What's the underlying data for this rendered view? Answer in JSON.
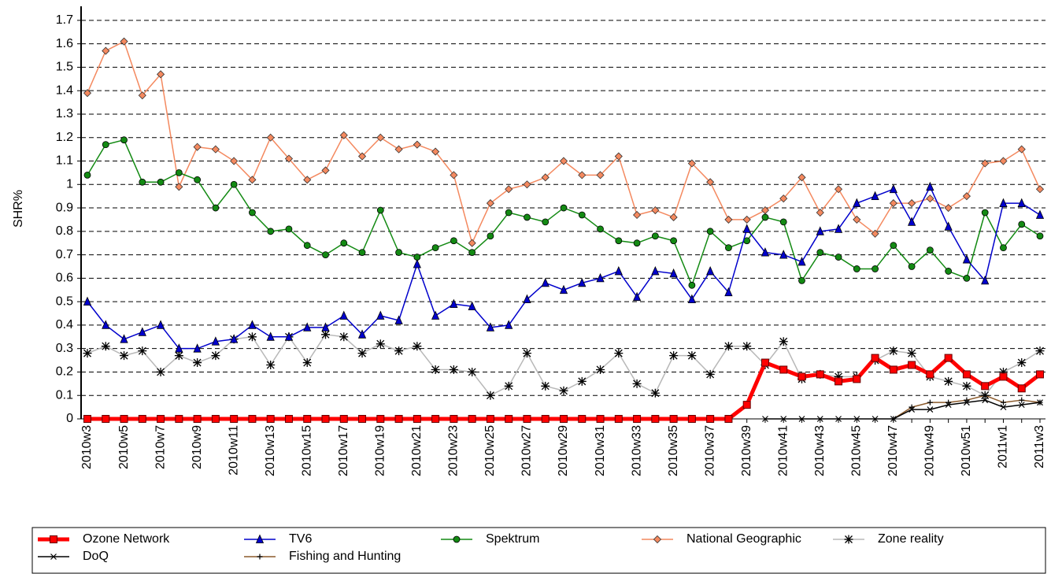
{
  "chart_data": {
    "type": "line",
    "y_label": "SHR%",
    "categories": [
      "2010w3",
      null,
      "2010w5",
      null,
      "2010w7",
      null,
      "2010w9",
      null,
      "2010w11",
      null,
      "2010w13",
      null,
      "2010w15",
      null,
      "2010w17",
      null,
      "2010w19",
      null,
      "2010w21",
      null,
      "2010w23",
      null,
      "2010w25",
      null,
      "2010w27",
      null,
      "2010w29",
      null,
      "2010w31",
      null,
      "2010w33",
      null,
      "2010w35",
      null,
      "2010w37",
      null,
      "2010w39",
      null,
      "2010w41",
      null,
      "2010w43",
      null,
      "2010w45",
      null,
      "2010w47",
      null,
      "2010w49",
      null,
      "2010w51",
      null,
      "2011w1",
      null,
      "2011w3"
    ],
    "ylim": [
      0,
      1.76
    ],
    "yticks": [
      0,
      0.1,
      0.2,
      0.3,
      0.4,
      0.5,
      0.6,
      0.7,
      0.8,
      0.9,
      1,
      1.1,
      1.2,
      1.3,
      1.4,
      1.5,
      1.6,
      1.7
    ],
    "grid": true,
    "legend": "bottom",
    "series": [
      {
        "name": "Ozone Network",
        "color": "#ff0000",
        "marker": "square",
        "values": [
          0,
          0,
          0,
          0,
          0,
          0,
          0,
          0,
          0,
          0,
          0,
          0,
          0,
          0,
          0,
          0,
          0,
          0,
          0,
          0,
          0,
          0,
          0,
          0,
          0,
          0,
          0,
          0,
          0,
          0,
          0,
          0,
          0,
          0,
          0,
          0,
          0.06,
          0.24,
          0.21,
          0.18,
          0.19,
          0.16,
          0.17,
          0.26,
          0.21,
          0.23,
          0.19,
          0.26,
          0.19,
          0.14,
          0.18,
          0.13,
          0.19
        ]
      },
      {
        "name": "TV6",
        "color": "#0000cc",
        "marker": "triangle",
        "values": [
          0.5,
          0.4,
          0.34,
          0.37,
          0.4,
          0.3,
          0.3,
          0.33,
          0.34,
          0.4,
          0.35,
          0.35,
          0.39,
          0.39,
          0.44,
          0.36,
          0.44,
          0.42,
          0.66,
          0.44,
          0.49,
          0.48,
          0.39,
          0.4,
          0.51,
          0.58,
          0.55,
          0.58,
          0.6,
          0.63,
          0.52,
          0.63,
          0.62,
          0.51,
          0.63,
          0.54,
          0.81,
          0.71,
          0.7,
          0.67,
          0.8,
          0.81,
          0.92,
          0.95,
          0.98,
          0.84,
          0.99,
          0.82,
          0.68,
          0.59,
          0.92,
          0.92,
          0.87
        ]
      },
      {
        "name": "Spektrum",
        "color": "#138a13",
        "marker": "circle",
        "values": [
          1.04,
          1.17,
          1.19,
          1.01,
          1.01,
          1.05,
          1.02,
          0.9,
          1.0,
          0.88,
          0.8,
          0.81,
          0.74,
          0.7,
          0.75,
          0.71,
          0.89,
          0.71,
          0.69,
          0.73,
          0.76,
          0.71,
          0.78,
          0.88,
          0.86,
          0.84,
          0.9,
          0.87,
          0.81,
          0.76,
          0.75,
          0.78,
          0.76,
          0.57,
          0.8,
          0.73,
          0.76,
          0.86,
          0.84,
          0.59,
          0.71,
          0.69,
          0.64,
          0.64,
          0.74,
          0.65,
          0.72,
          0.63,
          0.6,
          0.88,
          0.73,
          0.83,
          0.78
        ]
      },
      {
        "name": "National Geographic",
        "color": "#f4895f",
        "marker": "diamond",
        "values": [
          1.39,
          1.57,
          1.61,
          1.38,
          1.47,
          0.99,
          1.16,
          1.15,
          1.1,
          1.02,
          1.2,
          1.11,
          1.02,
          1.06,
          1.21,
          1.12,
          1.2,
          1.15,
          1.17,
          1.14,
          1.04,
          0.75,
          0.92,
          0.98,
          1.0,
          1.03,
          1.1,
          1.04,
          1.04,
          1.12,
          0.87,
          0.89,
          0.86,
          1.09,
          1.01,
          0.85,
          0.85,
          0.89,
          0.94,
          1.03,
          0.88,
          0.98,
          0.85,
          0.79,
          0.92,
          0.92,
          0.94,
          0.9,
          0.95,
          1.09,
          1.1,
          1.15,
          0.98
        ]
      },
      {
        "name": "Zone reality",
        "color": "#b8b8b8",
        "marker": "asterisk",
        "values": [
          0.28,
          0.31,
          0.27,
          0.29,
          0.2,
          0.27,
          0.24,
          0.27,
          0.34,
          0.35,
          0.23,
          0.35,
          0.24,
          0.36,
          0.35,
          0.28,
          0.32,
          0.29,
          0.31,
          0.21,
          0.21,
          0.2,
          0.1,
          0.14,
          0.28,
          0.14,
          0.12,
          0.16,
          0.21,
          0.28,
          0.15,
          0.11,
          0.27,
          0.27,
          0.19,
          0.31,
          0.31,
          0.23,
          0.33,
          0.17,
          0.19,
          0.18,
          0.18,
          0.25,
          0.29,
          0.28,
          0.18,
          0.16,
          0.14,
          0.1,
          0.2,
          0.24,
          0.29
        ]
      },
      {
        "name": "DoQ",
        "color": "#000000",
        "marker": "cross",
        "values": [
          null,
          null,
          null,
          null,
          null,
          null,
          null,
          null,
          null,
          null,
          null,
          null,
          null,
          null,
          null,
          null,
          null,
          null,
          null,
          null,
          null,
          null,
          null,
          null,
          null,
          null,
          null,
          null,
          null,
          null,
          null,
          null,
          null,
          null,
          null,
          null,
          null,
          0,
          0,
          0,
          0,
          0,
          0,
          0,
          0,
          0.04,
          0.04,
          0.06,
          0.07,
          0.08,
          0.05,
          0.06,
          0.07
        ]
      },
      {
        "name": "Fishing and Hunting",
        "color": "#8b5a2b",
        "marker": "plus",
        "values": [
          null,
          null,
          null,
          null,
          null,
          null,
          null,
          null,
          null,
          null,
          null,
          null,
          null,
          null,
          null,
          null,
          null,
          null,
          null,
          null,
          null,
          null,
          null,
          null,
          null,
          null,
          null,
          null,
          null,
          null,
          null,
          null,
          null,
          null,
          null,
          null,
          null,
          null,
          null,
          null,
          null,
          null,
          null,
          null,
          0,
          0.05,
          0.07,
          0.07,
          0.08,
          0.1,
          0.07,
          0.08,
          0.07
        ]
      }
    ]
  }
}
